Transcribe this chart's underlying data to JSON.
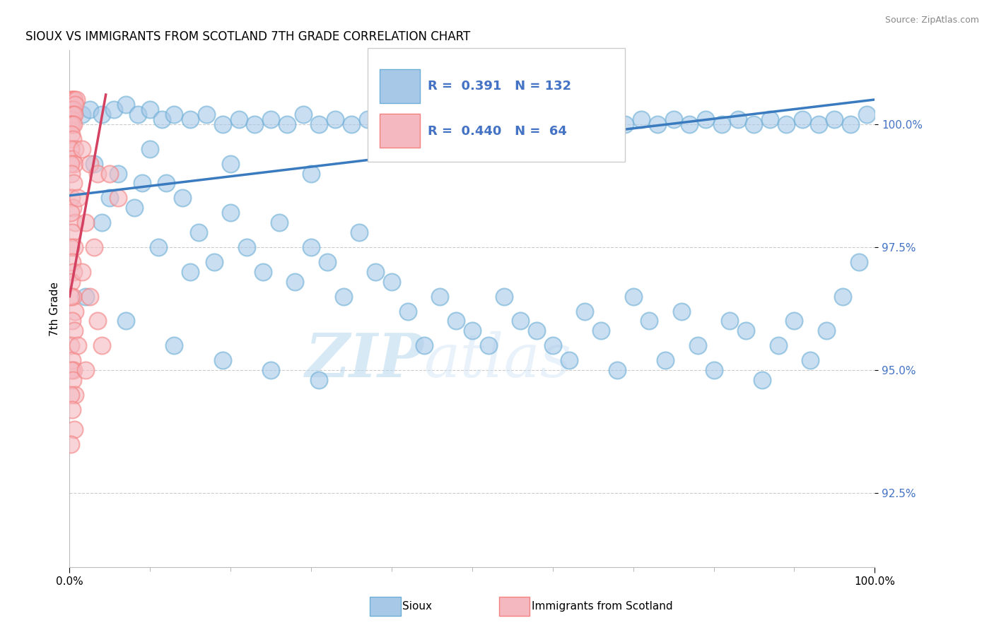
{
  "title": "SIOUX VS IMMIGRANTS FROM SCOTLAND 7TH GRADE CORRELATION CHART",
  "source": "Source: ZipAtlas.com",
  "ylabel": "7th Grade",
  "xlim": [
    0.0,
    100.0
  ],
  "ylim": [
    91.0,
    101.5
  ],
  "yticks": [
    92.5,
    95.0,
    97.5,
    100.0
  ],
  "ytick_labels": [
    "92.5%",
    "95.0%",
    "97.5%",
    "100.0%"
  ],
  "sioux_color": "#a8c8e8",
  "sioux_edge": "#6baed6",
  "scotland_color": "#f4b8c0",
  "scotland_edge": "#f48080",
  "trend_blue": "#3a7bbf",
  "trend_pink": "#d44060",
  "legend_R_sioux": "0.391",
  "legend_N_sioux": "132",
  "legend_R_scotland": "0.440",
  "legend_N_scotland": "64",
  "watermark_zip": "ZIP",
  "watermark_atlas": "atlas",
  "background_color": "#ffffff",
  "grid_color": "#cccccc",
  "sioux_points": [
    [
      0.5,
      100.3
    ],
    [
      1.5,
      100.2
    ],
    [
      2.5,
      100.3
    ],
    [
      4.0,
      100.2
    ],
    [
      5.5,
      100.3
    ],
    [
      7.0,
      100.4
    ],
    [
      8.5,
      100.2
    ],
    [
      10.0,
      100.3
    ],
    [
      11.5,
      100.1
    ],
    [
      13.0,
      100.2
    ],
    [
      15.0,
      100.1
    ],
    [
      17.0,
      100.2
    ],
    [
      19.0,
      100.0
    ],
    [
      21.0,
      100.1
    ],
    [
      23.0,
      100.0
    ],
    [
      25.0,
      100.1
    ],
    [
      27.0,
      100.0
    ],
    [
      29.0,
      100.2
    ],
    [
      31.0,
      100.0
    ],
    [
      33.0,
      100.1
    ],
    [
      35.0,
      100.0
    ],
    [
      37.0,
      100.1
    ],
    [
      39.0,
      100.0
    ],
    [
      41.0,
      100.2
    ],
    [
      43.0,
      100.1
    ],
    [
      45.0,
      100.0
    ],
    [
      47.0,
      100.1
    ],
    [
      49.0,
      100.0
    ],
    [
      51.0,
      100.1
    ],
    [
      53.0,
      100.0
    ],
    [
      55.0,
      100.1
    ],
    [
      57.0,
      100.0
    ],
    [
      59.0,
      100.1
    ],
    [
      61.0,
      100.0
    ],
    [
      63.0,
      100.1
    ],
    [
      65.0,
      100.0
    ],
    [
      67.0,
      100.1
    ],
    [
      69.0,
      100.0
    ],
    [
      71.0,
      100.1
    ],
    [
      73.0,
      100.0
    ],
    [
      75.0,
      100.1
    ],
    [
      77.0,
      100.0
    ],
    [
      79.0,
      100.1
    ],
    [
      81.0,
      100.0
    ],
    [
      83.0,
      100.1
    ],
    [
      85.0,
      100.0
    ],
    [
      87.0,
      100.1
    ],
    [
      89.0,
      100.0
    ],
    [
      91.0,
      100.1
    ],
    [
      93.0,
      100.0
    ],
    [
      95.0,
      100.1
    ],
    [
      97.0,
      100.0
    ],
    [
      99.0,
      100.2
    ],
    [
      3.0,
      99.2
    ],
    [
      6.0,
      99.0
    ],
    [
      9.0,
      98.8
    ],
    [
      12.0,
      98.8
    ],
    [
      5.0,
      98.5
    ],
    [
      8.0,
      98.3
    ],
    [
      14.0,
      98.5
    ],
    [
      20.0,
      98.2
    ],
    [
      26.0,
      98.0
    ],
    [
      16.0,
      97.8
    ],
    [
      22.0,
      97.5
    ],
    [
      30.0,
      97.5
    ],
    [
      36.0,
      97.8
    ],
    [
      18.0,
      97.2
    ],
    [
      24.0,
      97.0
    ],
    [
      32.0,
      97.2
    ],
    [
      38.0,
      97.0
    ],
    [
      28.0,
      96.8
    ],
    [
      34.0,
      96.5
    ],
    [
      40.0,
      96.8
    ],
    [
      46.0,
      96.5
    ],
    [
      42.0,
      96.2
    ],
    [
      48.0,
      96.0
    ],
    [
      50.0,
      95.8
    ],
    [
      56.0,
      96.0
    ],
    [
      52.0,
      95.5
    ],
    [
      58.0,
      95.8
    ],
    [
      44.0,
      95.5
    ],
    [
      60.0,
      95.5
    ],
    [
      66.0,
      95.8
    ],
    [
      72.0,
      96.0
    ],
    [
      78.0,
      95.5
    ],
    [
      84.0,
      95.8
    ],
    [
      90.0,
      96.0
    ],
    [
      96.0,
      96.5
    ],
    [
      62.0,
      95.2
    ],
    [
      68.0,
      95.0
    ],
    [
      74.0,
      95.2
    ],
    [
      80.0,
      95.0
    ],
    [
      86.0,
      94.8
    ],
    [
      92.0,
      95.2
    ],
    [
      98.0,
      97.2
    ],
    [
      54.0,
      96.5
    ],
    [
      64.0,
      96.2
    ],
    [
      70.0,
      96.5
    ],
    [
      76.0,
      96.2
    ],
    [
      82.0,
      96.0
    ],
    [
      88.0,
      95.5
    ],
    [
      94.0,
      95.8
    ],
    [
      10.0,
      99.5
    ],
    [
      20.0,
      99.2
    ],
    [
      30.0,
      99.0
    ],
    [
      4.0,
      98.0
    ],
    [
      11.0,
      97.5
    ],
    [
      15.0,
      97.0
    ],
    [
      2.0,
      96.5
    ],
    [
      7.0,
      96.0
    ],
    [
      13.0,
      95.5
    ],
    [
      19.0,
      95.2
    ],
    [
      25.0,
      95.0
    ],
    [
      31.0,
      94.8
    ]
  ],
  "scotland_points": [
    [
      0.15,
      100.5
    ],
    [
      0.3,
      100.5
    ],
    [
      0.45,
      100.5
    ],
    [
      0.6,
      100.5
    ],
    [
      0.8,
      100.5
    ],
    [
      0.15,
      100.3
    ],
    [
      0.3,
      100.3
    ],
    [
      0.5,
      100.3
    ],
    [
      0.7,
      100.4
    ],
    [
      0.2,
      100.1
    ],
    [
      0.4,
      100.2
    ],
    [
      0.6,
      100.2
    ],
    [
      0.1,
      100.0
    ],
    [
      0.3,
      100.0
    ],
    [
      0.5,
      100.0
    ],
    [
      0.2,
      99.8
    ],
    [
      0.4,
      99.7
    ],
    [
      0.7,
      99.5
    ],
    [
      0.15,
      99.5
    ],
    [
      0.35,
      99.3
    ],
    [
      0.6,
      99.2
    ],
    [
      0.1,
      99.2
    ],
    [
      0.25,
      99.0
    ],
    [
      0.5,
      98.8
    ],
    [
      0.2,
      98.5
    ],
    [
      0.4,
      98.3
    ],
    [
      0.7,
      98.0
    ],
    [
      0.15,
      98.2
    ],
    [
      0.35,
      97.8
    ],
    [
      0.6,
      97.5
    ],
    [
      0.1,
      97.5
    ],
    [
      0.3,
      97.2
    ],
    [
      0.5,
      97.0
    ],
    [
      0.2,
      96.8
    ],
    [
      0.4,
      96.5
    ],
    [
      0.7,
      96.2
    ],
    [
      0.15,
      96.5
    ],
    [
      0.35,
      96.0
    ],
    [
      0.6,
      95.8
    ],
    [
      0.1,
      95.5
    ],
    [
      0.3,
      95.2
    ],
    [
      0.5,
      95.0
    ],
    [
      0.2,
      95.0
    ],
    [
      0.4,
      94.8
    ],
    [
      0.7,
      94.5
    ],
    [
      0.15,
      94.5
    ],
    [
      0.35,
      94.2
    ],
    [
      0.6,
      93.8
    ],
    [
      0.1,
      93.5
    ],
    [
      1.5,
      99.5
    ],
    [
      2.5,
      99.2
    ],
    [
      3.5,
      99.0
    ],
    [
      1.0,
      98.5
    ],
    [
      2.0,
      98.0
    ],
    [
      3.0,
      97.5
    ],
    [
      1.5,
      97.0
    ],
    [
      2.5,
      96.5
    ],
    [
      3.5,
      96.0
    ],
    [
      1.0,
      95.5
    ],
    [
      2.0,
      95.0
    ],
    [
      4.0,
      95.5
    ],
    [
      5.0,
      99.0
    ],
    [
      6.0,
      98.5
    ]
  ],
  "sioux_trend_x": [
    0,
    100
  ],
  "sioux_trend_y": [
    98.55,
    100.5
  ],
  "scotland_trend_x": [
    0,
    4.5
  ],
  "scotland_trend_y": [
    96.5,
    100.6
  ]
}
